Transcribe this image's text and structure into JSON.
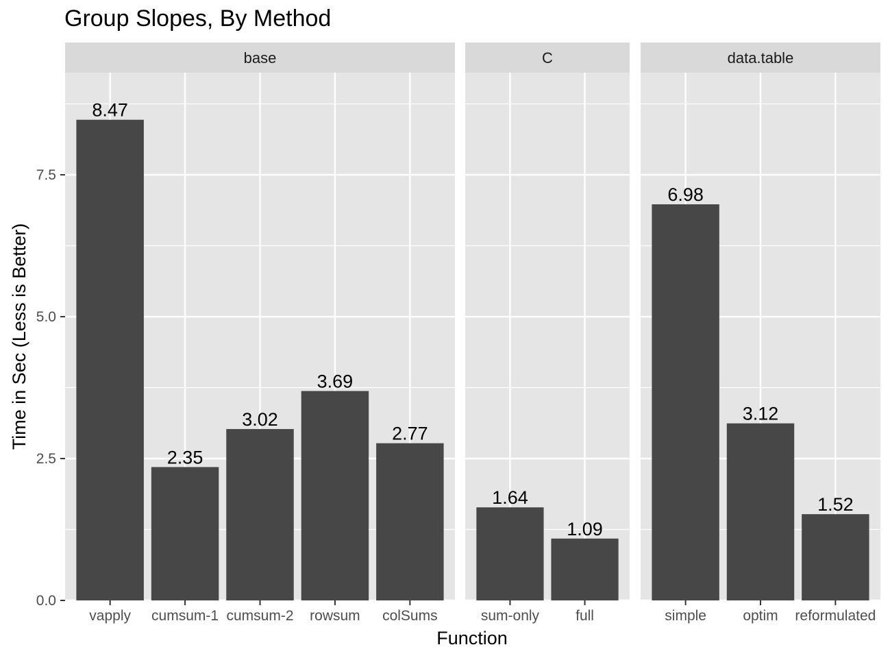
{
  "chart_data": {
    "type": "bar",
    "title": "Group Slopes, By Method",
    "xlabel": "Function",
    "ylabel": "Time in Sec (Less is Better)",
    "ylim": [
      0,
      9.3
    ],
    "yticks": [
      "0.0",
      "2.5",
      "5.0",
      "7.5"
    ],
    "grid": true,
    "colors": {
      "bar": "#474747",
      "panel": "#e5e5e5",
      "strip": "#d9d9d9",
      "grid": "#ffffff"
    },
    "facets": [
      {
        "name": "base",
        "categories": [
          "vapply",
          "cumsum-1",
          "cumsum-2",
          "rowsum",
          "colSums"
        ],
        "values": [
          8.47,
          2.35,
          3.02,
          3.69,
          2.77
        ],
        "labels": [
          "8.47",
          "2.35",
          "3.02",
          "3.69",
          "2.77"
        ]
      },
      {
        "name": "C",
        "categories": [
          "sum-only",
          "full"
        ],
        "values": [
          1.64,
          1.09
        ],
        "labels": [
          "1.64",
          "1.09"
        ]
      },
      {
        "name": "data.table",
        "categories": [
          "simple",
          "optim",
          "reformulated"
        ],
        "values": [
          6.98,
          3.12,
          1.52
        ],
        "labels": [
          "6.98",
          "3.12",
          "1.52"
        ]
      }
    ]
  }
}
